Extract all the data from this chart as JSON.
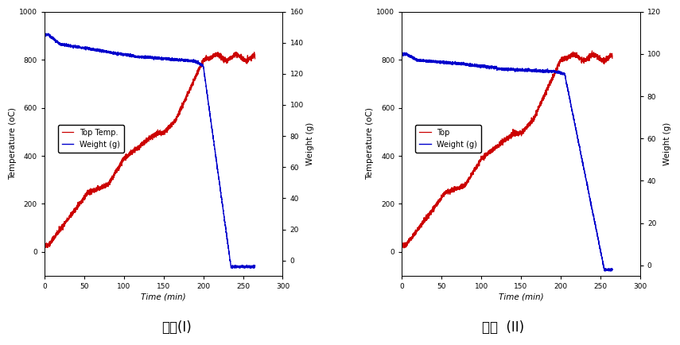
{
  "chart1": {
    "title": "실험(I)",
    "xlabel": "Time (min)",
    "ylabel_left": "Temperature (oC)",
    "ylabel_right": "Weight (g)",
    "xlim": [
      0,
      300
    ],
    "ylim_left": [
      -100,
      1000
    ],
    "ylim_right": [
      -10,
      160
    ],
    "yticks_left": [
      0,
      200,
      400,
      600,
      800,
      1000
    ],
    "yticks_right": [
      0,
      20,
      40,
      60,
      80,
      100,
      120,
      140,
      160
    ],
    "xticks": [
      0,
      50,
      100,
      150,
      200,
      250,
      300
    ],
    "legend_temp": "Top Temp.",
    "legend_weight": "Weight (g)",
    "temp_color": "#cc0000",
    "weight_color": "#0000cc"
  },
  "chart2": {
    "title": "실험  (II)",
    "xlabel": "Time (min)",
    "ylabel_left": "Temperature (oC)",
    "ylabel_right": "Weight (g)",
    "xlim": [
      0,
      300
    ],
    "ylim_left": [
      -100,
      1000
    ],
    "ylim_right": [
      -5,
      120
    ],
    "yticks_left": [
      0,
      200,
      400,
      600,
      800,
      1000
    ],
    "yticks_right": [
      0,
      20,
      40,
      60,
      80,
      100,
      120
    ],
    "xticks": [
      0,
      50,
      100,
      150,
      200,
      250,
      300
    ],
    "legend_temp": "Top",
    "legend_weight": "Weight (g)",
    "temp_color": "#cc0000",
    "weight_color": "#0000cc"
  },
  "bg_color": "#f0f8ff",
  "plot_bg": "#ffffff"
}
